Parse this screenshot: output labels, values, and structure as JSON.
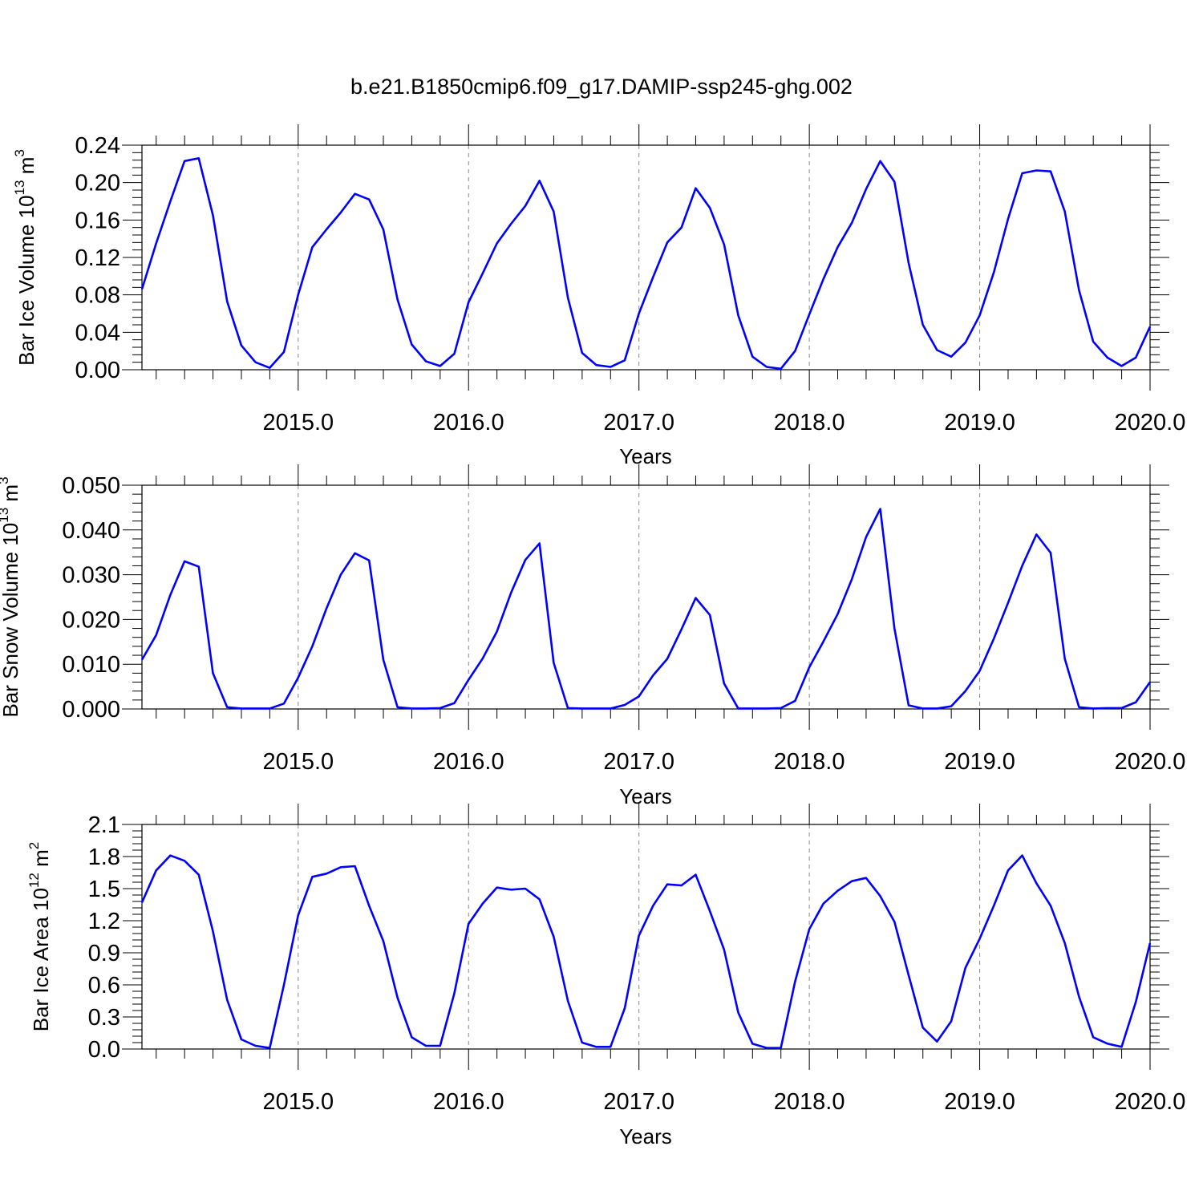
{
  "title": "b.e21.B1850cmip6.f09_g17.DAMIP-ssp245-ghg.002",
  "line_color": "#0000ff",
  "chart_data": [
    {
      "type": "line",
      "ylabel": "Bar Ice Volume 10",
      "ylabel_exp": "13",
      "ylabel_unit": " m",
      "ylabel_unit_exp": "3",
      "xlabel": "Years",
      "xlim": [
        2014.083,
        2020.0
      ],
      "ylim": [
        0,
        0.24
      ],
      "grid": "dashed vertical at year boundaries",
      "xticks": [
        2015.0,
        2016.0,
        2017.0,
        2018.0,
        2019.0,
        2020.0
      ],
      "xtick_labels": [
        "2015.0",
        "2016.0",
        "2017.0",
        "2018.0",
        "2019.0",
        "2020.0"
      ],
      "yticks": [
        0,
        0.04,
        0.08,
        0.12,
        0.16,
        0.2,
        0.24
      ],
      "ytick_labels": [
        "0.00",
        "0.04",
        "0.08",
        "0.12",
        "0.16",
        "0.20",
        "0.24"
      ],
      "series": [
        {
          "x_start": 2014.083,
          "x_step": 0.0833333,
          "values": [
            0.086,
            0.135,
            0.18,
            0.223,
            0.226,
            0.165,
            0.073,
            0.026,
            0.008,
            0.002,
            0.019,
            0.08,
            0.131,
            0.15,
            0.168,
            0.188,
            0.182,
            0.15,
            0.075,
            0.027,
            0.009,
            0.004,
            0.017,
            0.072,
            0.103,
            0.135,
            0.156,
            0.175,
            0.202,
            0.169,
            0.077,
            0.018,
            0.005,
            0.003,
            0.01,
            0.06,
            0.099,
            0.136,
            0.152,
            0.194,
            0.173,
            0.134,
            0.058,
            0.014,
            0.003,
            0.001,
            0.02,
            0.059,
            0.097,
            0.131,
            0.157,
            0.193,
            0.223,
            0.201,
            0.114,
            0.048,
            0.021,
            0.014,
            0.029,
            0.058,
            0.104,
            0.161,
            0.21,
            0.213,
            0.212,
            0.169,
            0.085,
            0.03,
            0.013,
            0.004,
            0.013,
            0.046
          ]
        }
      ]
    },
    {
      "type": "line",
      "ylabel": "Bar Snow Volume 10",
      "ylabel_exp": "13",
      "ylabel_unit": " m",
      "ylabel_unit_exp": "3",
      "xlabel": "Years",
      "xlim": [
        2014.083,
        2020.0
      ],
      "ylim": [
        0,
        0.05
      ],
      "grid": "dashed vertical at year boundaries",
      "xticks": [
        2015.0,
        2016.0,
        2017.0,
        2018.0,
        2019.0,
        2020.0
      ],
      "xtick_labels": [
        "2015.0",
        "2016.0",
        "2017.0",
        "2018.0",
        "2019.0",
        "2020.0"
      ],
      "yticks": [
        0,
        0.01,
        0.02,
        0.03,
        0.04,
        0.05
      ],
      "ytick_labels": [
        "0.000",
        "0.010",
        "0.020",
        "0.030",
        "0.040",
        "0.050"
      ],
      "series": [
        {
          "x_start": 2014.083,
          "x_step": 0.0833333,
          "values": [
            0.011,
            0.0165,
            0.0255,
            0.033,
            0.0318,
            0.008,
            0.0004,
            0.0001,
            0.0001,
            0.0001,
            0.0012,
            0.007,
            0.014,
            0.0225,
            0.03,
            0.0348,
            0.0332,
            0.011,
            0.0004,
            0.0001,
            0.0001,
            0.0002,
            0.0013,
            0.0065,
            0.0113,
            0.0173,
            0.026,
            0.0333,
            0.037,
            0.0103,
            0.0002,
            0.0001,
            0.0001,
            0.0001,
            0.0009,
            0.0028,
            0.0075,
            0.0112,
            0.0178,
            0.0248,
            0.021,
            0.0057,
            0.0001,
            0.0001,
            0.0001,
            0.0002,
            0.0018,
            0.0093,
            0.0151,
            0.0212,
            0.029,
            0.0384,
            0.0447,
            0.018,
            0.0008,
            0.0001,
            0.0001,
            0.0006,
            0.004,
            0.0085,
            0.0157,
            0.0237,
            0.032,
            0.039,
            0.0349,
            0.0112,
            0.0004,
            0.0001,
            0.0002,
            0.0002,
            0.0015,
            0.006
          ]
        }
      ]
    },
    {
      "type": "line",
      "ylabel": "Bar Ice Area 10",
      "ylabel_exp": "12",
      "ylabel_unit": " m",
      "ylabel_unit_exp": "2",
      "xlabel": "Years",
      "xlim": [
        2014.083,
        2020.0
      ],
      "ylim": [
        0,
        2.1
      ],
      "grid": "dashed vertical at year boundaries",
      "xticks": [
        2015.0,
        2016.0,
        2017.0,
        2018.0,
        2019.0,
        2020.0
      ],
      "xtick_labels": [
        "2015.0",
        "2016.0",
        "2017.0",
        "2018.0",
        "2019.0",
        "2020.0"
      ],
      "yticks": [
        0,
        0.3,
        0.6,
        0.9,
        1.2,
        1.5,
        1.8,
        2.1
      ],
      "ytick_labels": [
        "0.0",
        "0.3",
        "0.6",
        "0.9",
        "1.2",
        "1.5",
        "1.8",
        "2.1"
      ],
      "series": [
        {
          "x_start": 2014.083,
          "x_step": 0.0833333,
          "values": [
            1.37,
            1.67,
            1.81,
            1.76,
            1.63,
            1.1,
            0.46,
            0.09,
            0.03,
            0.01,
            0.6,
            1.25,
            1.61,
            1.64,
            1.7,
            1.71,
            1.34,
            1.01,
            0.48,
            0.11,
            0.03,
            0.03,
            0.52,
            1.17,
            1.36,
            1.51,
            1.49,
            1.5,
            1.4,
            1.05,
            0.45,
            0.06,
            0.02,
            0.02,
            0.38,
            1.06,
            1.34,
            1.54,
            1.53,
            1.63,
            1.29,
            0.93,
            0.34,
            0.05,
            0.01,
            0.01,
            0.63,
            1.12,
            1.36,
            1.48,
            1.57,
            1.6,
            1.43,
            1.19,
            0.69,
            0.2,
            0.07,
            0.26,
            0.76,
            1.03,
            1.34,
            1.67,
            1.81,
            1.55,
            1.34,
            0.99,
            0.49,
            0.11,
            0.05,
            0.02,
            0.44,
            0.99
          ]
        }
      ]
    }
  ]
}
